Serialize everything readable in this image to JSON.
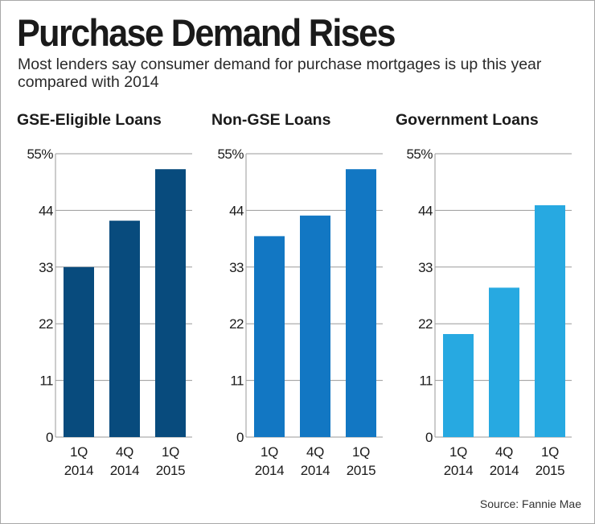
{
  "title": "Purchase Demand Rises",
  "subtitle": "Most lenders say consumer demand for purchase mortgages is up this year compared with 2014",
  "source": "Source: Fannie Mae",
  "chart_data": [
    {
      "type": "bar",
      "title": "GSE-Eligible Loans",
      "categories": [
        [
          "1Q",
          "2014"
        ],
        [
          "4Q",
          "2014"
        ],
        [
          "1Q",
          "2015"
        ]
      ],
      "values": [
        33,
        42,
        52
      ],
      "yticks": [
        "55%",
        "44",
        "33",
        "22",
        "11",
        "0"
      ],
      "ytick_values": [
        55,
        44,
        33,
        22,
        11,
        0
      ],
      "ylim": [
        0,
        55
      ],
      "color": "#084b7d"
    },
    {
      "type": "bar",
      "title": "Non-GSE Loans",
      "categories": [
        [
          "1Q",
          "2014"
        ],
        [
          "4Q",
          "2014"
        ],
        [
          "1Q",
          "2015"
        ]
      ],
      "values": [
        39,
        43,
        52
      ],
      "yticks": [
        "55%",
        "44",
        "33",
        "22",
        "11",
        "0"
      ],
      "ytick_values": [
        55,
        44,
        33,
        22,
        11,
        0
      ],
      "ylim": [
        0,
        55
      ],
      "color": "#1277c3"
    },
    {
      "type": "bar",
      "title": "Government Loans",
      "categories": [
        [
          "1Q",
          "2014"
        ],
        [
          "4Q",
          "2014"
        ],
        [
          "1Q",
          "2015"
        ]
      ],
      "values": [
        20,
        29,
        45
      ],
      "yticks": [
        "55%",
        "44",
        "33",
        "22",
        "11",
        "0"
      ],
      "ytick_values": [
        55,
        44,
        33,
        22,
        11,
        0
      ],
      "ylim": [
        0,
        55
      ],
      "color": "#27a9e1"
    }
  ]
}
